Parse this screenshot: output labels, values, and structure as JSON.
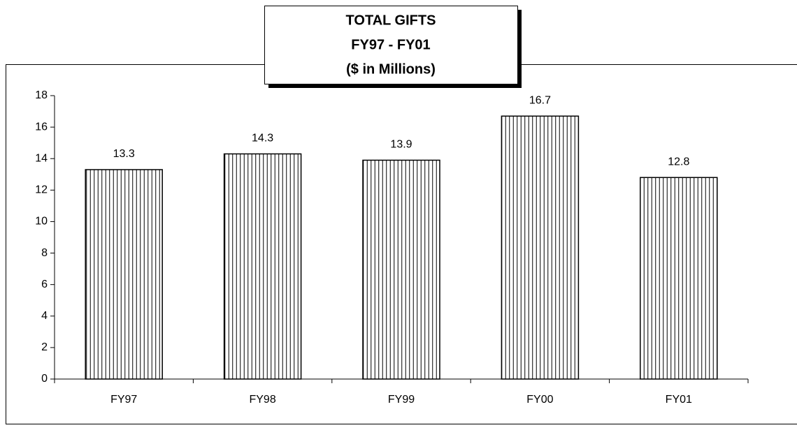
{
  "chart_data": {
    "type": "bar",
    "title": [
      "TOTAL GIFTS",
      "FY97 - FY01",
      "($ in Millions)"
    ],
    "categories": [
      "FY97",
      "FY98",
      "FY99",
      "FY00",
      "FY01"
    ],
    "values": [
      13.3,
      14.3,
      13.9,
      16.7,
      12.8
    ],
    "color": "#000000",
    "ylim": [
      0,
      18
    ],
    "yticks": [
      0,
      2,
      4,
      6,
      8,
      10,
      12,
      14,
      16,
      18
    ],
    "grid": false
  }
}
